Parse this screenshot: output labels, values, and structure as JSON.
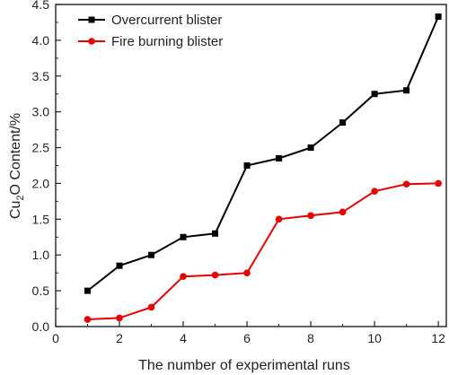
{
  "chart_data": {
    "type": "line",
    "title": "",
    "xlabel": "The number of experimental runs",
    "ylabel_parts": [
      "Cu",
      "2",
      "O Content/%"
    ],
    "xlim": [
      0,
      12.25
    ],
    "ylim": [
      0,
      4.5
    ],
    "xticks": [
      0,
      2,
      4,
      6,
      8,
      10,
      12
    ],
    "yticks": [
      "0.0",
      "0.5",
      "1.0",
      "1.5",
      "2.0",
      "2.5",
      "3.0",
      "3.5",
      "4.0",
      "4.5"
    ],
    "x": [
      1,
      2,
      3,
      4,
      5,
      6,
      7,
      8,
      9,
      10,
      11,
      12
    ],
    "series": [
      {
        "name": "Overcurrent blister",
        "color": "#000000",
        "marker": "square",
        "values": [
          0.5,
          0.85,
          1.0,
          1.25,
          1.3,
          2.25,
          2.35,
          2.5,
          2.85,
          3.25,
          3.3,
          4.33
        ]
      },
      {
        "name": "Fire burning blister",
        "color": "#e60000",
        "marker": "circle",
        "values": [
          0.1,
          0.12,
          0.27,
          0.7,
          0.72,
          0.75,
          1.5,
          1.55,
          1.6,
          1.89,
          1.99,
          2.0
        ]
      }
    ],
    "legend_position": "top-left",
    "grid": false
  }
}
